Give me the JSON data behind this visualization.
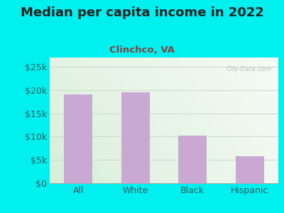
{
  "title": "Median per capita income in 2022",
  "subtitle": "Clinchco, VA",
  "categories": [
    "All",
    "White",
    "Black",
    "Hispanic"
  ],
  "values": [
    19000,
    19500,
    10200,
    5800
  ],
  "bar_color": "#c9a8d4",
  "title_fontsize": 13,
  "subtitle_fontsize": 9.5,
  "tick_label_fontsize": 9,
  "ytick_labels": [
    "$0",
    "$5k",
    "$10k",
    "$15k",
    "$20k",
    "$25k"
  ],
  "ytick_values": [
    0,
    5000,
    10000,
    15000,
    20000,
    25000
  ],
  "ylim": [
    0,
    27000
  ],
  "background_outer": "#00f0f0",
  "watermark": "City-Data.com",
  "title_color": "#222222",
  "subtitle_color": "#8b4040",
  "ytick_color": "#2e6060",
  "xtick_color": "#2e6060",
  "bar_width": 0.5,
  "grid_color": "#ccddcc",
  "bg_color_left": "#d8eed8",
  "bg_color_right": "#eaf5ee"
}
